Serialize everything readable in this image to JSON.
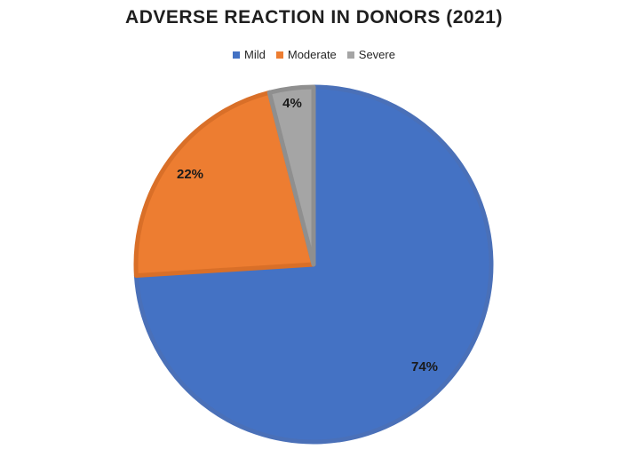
{
  "chart_data": {
    "type": "pie",
    "title": "ADVERSE REACTION IN DONORS (2021)",
    "categories": [
      "Mild",
      "Moderate",
      "Severe"
    ],
    "values": [
      74,
      22,
      4
    ],
    "labels": [
      "74%",
      "22%",
      "4%"
    ],
    "colors": [
      "#4472C4",
      "#ED7D31",
      "#A5A5A5"
    ],
    "border_colors": [
      "#4A70B8",
      "#D96F28",
      "#8F8F8F"
    ],
    "legend_position": "top"
  }
}
